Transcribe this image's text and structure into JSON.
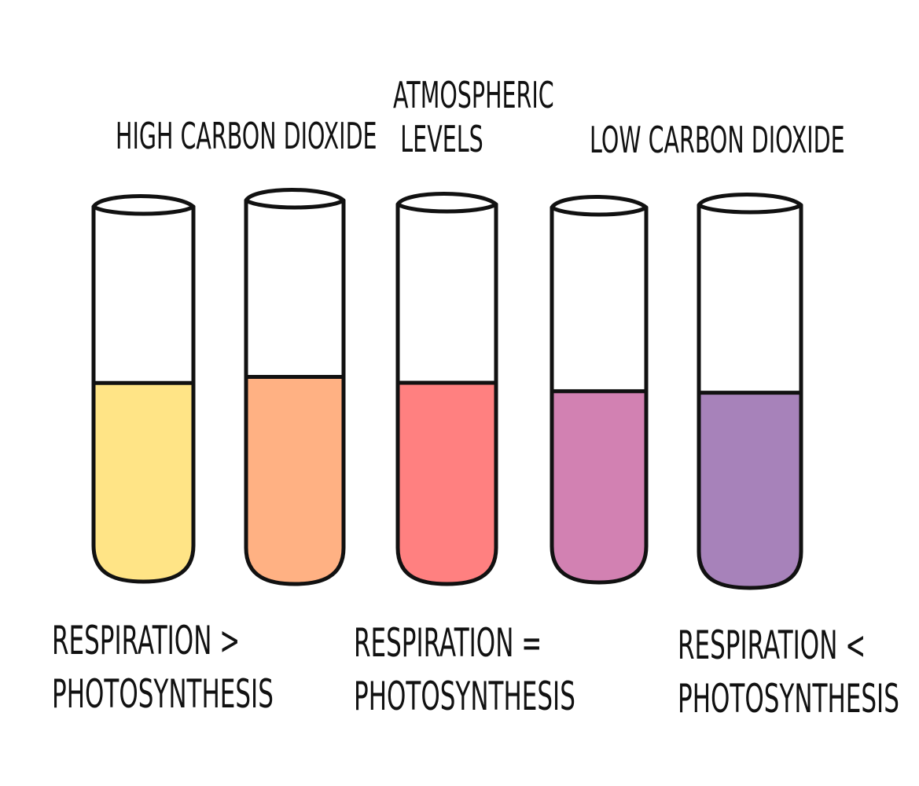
{
  "labels": {
    "high_co2": "HIGH CARBON DIOXIDE",
    "atmospheric_line1": "ATMOSPHERIC",
    "atmospheric_line2": "LEVELS",
    "low_co2": "LOW CARBON DIOXIDE"
  },
  "captions": {
    "left_line1": "RESPIRATION >",
    "left_line2": "PHOTOSYNTHESIS",
    "middle_line1": "RESPIRATION =",
    "middle_line2": "PHOTOSYNTHESIS",
    "right_line1": "RESPIRATION <",
    "right_line2": "PHOTOSYNTHESIS"
  },
  "tubes": [
    {
      "color": "#FFE486",
      "fill_fraction": 0.53
    },
    {
      "color": "#FFB183",
      "fill_fraction": 0.54
    },
    {
      "color": "#FF8080",
      "fill_fraction": 0.53
    },
    {
      "color": "#D281B2",
      "fill_fraction": 0.51
    },
    {
      "color": "#A782BA",
      "fill_fraction": 0.51
    }
  ]
}
